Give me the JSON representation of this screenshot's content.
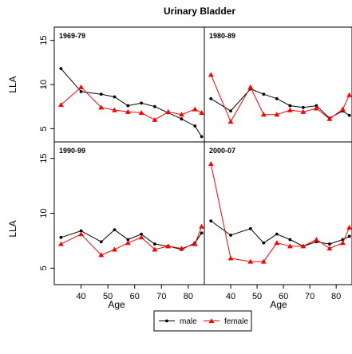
{
  "chart_data": {
    "type": "line",
    "title": "Urinary Bladder",
    "xlabel": "Age",
    "ylabel": "LLA",
    "xlim": [
      30,
      86
    ],
    "ylim": [
      3.5,
      16.5
    ],
    "x_ticks": [
      40,
      50,
      60,
      70,
      80
    ],
    "y_ticks": [
      5,
      10,
      15
    ],
    "colors": {
      "male": "#000000",
      "female": "#ff0000"
    },
    "legend": [
      {
        "name": "male",
        "marker": "circle"
      },
      {
        "name": "female",
        "marker": "triangle"
      }
    ],
    "legend_position": "bottom",
    "x": [
      32.5,
      40,
      47.5,
      52.5,
      57.5,
      62.5,
      67.5,
      72.5,
      77.5,
      82.5,
      85
    ],
    "panels": [
      {
        "label": "1969-79",
        "series": [
          {
            "name": "male",
            "values": [
              11.8,
              9.2,
              8.9,
              8.6,
              7.6,
              7.9,
              7.5,
              6.8,
              6.1,
              5.3,
              4.1
            ]
          },
          {
            "name": "female",
            "values": [
              7.7,
              9.7,
              7.4,
              7.1,
              6.9,
              6.8,
              6.0,
              6.9,
              6.6,
              7.2,
              6.8
            ]
          }
        ]
      },
      {
        "label": "1980-89",
        "series": [
          {
            "name": "male",
            "values": [
              8.4,
              7.0,
              9.5,
              8.9,
              8.4,
              7.6,
              7.4,
              7.6,
              6.2,
              7.0,
              6.5
            ]
          },
          {
            "name": "female",
            "values": [
              11.1,
              5.8,
              9.7,
              6.6,
              6.6,
              7.1,
              6.9,
              7.3,
              6.1,
              7.2,
              8.8
            ]
          }
        ]
      },
      {
        "label": "1990-99",
        "series": [
          {
            "name": "male",
            "values": [
              7.8,
              8.4,
              7.4,
              8.5,
              7.6,
              8.1,
              7.2,
              7.0,
              6.7,
              7.3,
              8.2
            ]
          },
          {
            "name": "female",
            "values": [
              7.2,
              8.1,
              6.2,
              6.7,
              7.3,
              7.8,
              6.7,
              7.0,
              6.8,
              7.2,
              8.8
            ]
          }
        ]
      },
      {
        "label": "2000-07",
        "series": [
          {
            "name": "male",
            "values": [
              9.3,
              8.0,
              8.6,
              7.3,
              8.1,
              7.6,
              7.0,
              7.4,
              7.2,
              7.6,
              7.9
            ]
          },
          {
            "name": "female",
            "values": [
              14.5,
              5.9,
              5.6,
              5.6,
              7.3,
              7.0,
              7.0,
              7.6,
              6.8,
              7.3,
              8.7
            ]
          }
        ]
      }
    ]
  }
}
